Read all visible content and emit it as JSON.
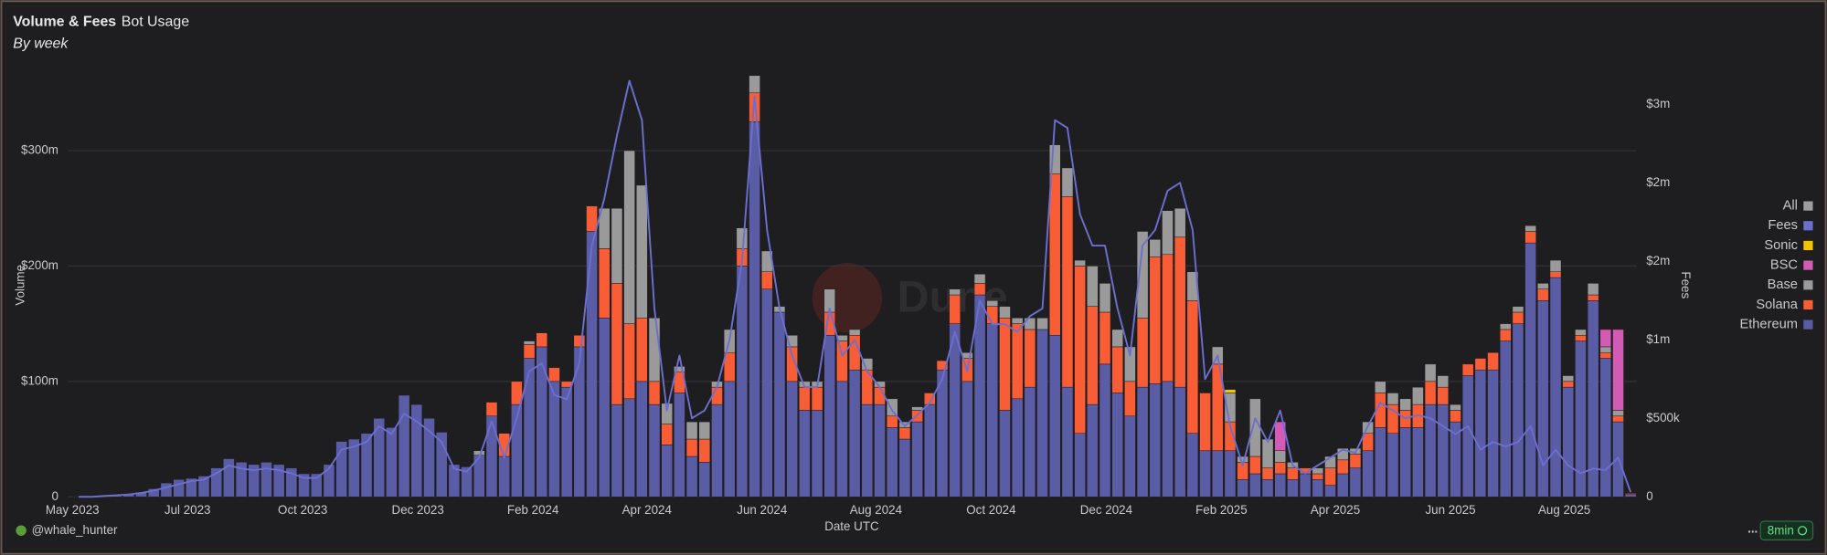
{
  "header": {
    "title": "Volume & Fees",
    "tab": "Bot Usage",
    "subtitle": "By week"
  },
  "footer": {
    "author": "@whale_hunter",
    "refresh": "8min",
    "menu": "..."
  },
  "watermark": "Dune",
  "chart_data": {
    "type": "bar",
    "stacked": true,
    "grid": true,
    "legend_position": "right",
    "xlabel": "Date UTC",
    "ylabel": "Volume",
    "y2label": "Fees",
    "categories": [
      null,
      null,
      null,
      null,
      null,
      null,
      null,
      null,
      null,
      null,
      null,
      null,
      null,
      null,
      null,
      null,
      null,
      null,
      null,
      null,
      null,
      null,
      null,
      null,
      null,
      null,
      null,
      null,
      null,
      null,
      null,
      null,
      null,
      null,
      null,
      null,
      null,
      null,
      null,
      null,
      null,
      null,
      null,
      null,
      null,
      null,
      null,
      null,
      null,
      null,
      null,
      null,
      null,
      null,
      null,
      null,
      null,
      null,
      null,
      null,
      null,
      null,
      null,
      null,
      null,
      null,
      null,
      null,
      null,
      null,
      null,
      null,
      null,
      null,
      null,
      null,
      null,
      null,
      null,
      null,
      null,
      null,
      null,
      null,
      null,
      null,
      null,
      null,
      null,
      null,
      null,
      null,
      null,
      null,
      null,
      null,
      null,
      null,
      null,
      null,
      null,
      null,
      null,
      null,
      null,
      null,
      null,
      null,
      null,
      null,
      null,
      null,
      null,
      null,
      null,
      null,
      null,
      null,
      null,
      null,
      null,
      null,
      null,
      null,
      null
    ],
    "xticks": [
      {
        "value": 0,
        "label": "May 2023"
      },
      {
        "value": 9.2,
        "label": "Jul 2023"
      },
      {
        "value": 18.4,
        "label": "Oct 2023"
      },
      {
        "value": 27.6,
        "label": "Dec 2023"
      },
      {
        "value": 36.8,
        "label": "Feb 2024"
      },
      {
        "value": 45.9,
        "label": "Apr 2024"
      },
      {
        "value": 55.1,
        "label": "Jun 2024"
      },
      {
        "value": 64.2,
        "label": "Aug 2024"
      },
      {
        "value": 73.4,
        "label": "Oct 2024"
      },
      {
        "value": 82.6,
        "label": "Dec 2024"
      },
      {
        "value": 91.8,
        "label": "Feb 2025"
      },
      {
        "value": 100.9,
        "label": "Apr 2025"
      },
      {
        "value": 110.1,
        "label": "Jun 2025"
      },
      {
        "value": 119.2,
        "label": "Aug 2025"
      }
    ],
    "ylim": [
      0,
      370
    ],
    "yticks": [
      0,
      {
        "value": 100,
        "label": "$100m"
      },
      {
        "value": 200,
        "label": "$200m"
      },
      {
        "value": 300,
        "label": "$300m"
      }
    ],
    "y2lim": [
      0,
      2720000
    ],
    "y2ticks": [
      0,
      {
        "value": 500000,
        "label": "$500k"
      },
      {
        "value": 1000000,
        "label": "$1m"
      },
      {
        "value": 1500000,
        "label": "$2m"
      },
      {
        "value": 2000000,
        "label": "$2m"
      },
      {
        "value": 2500000,
        "label": "$3m"
      }
    ],
    "legend_all": {
      "name": "All",
      "color": "#9e9e9e"
    },
    "series": [
      {
        "name": "Ethereum",
        "color": "#5b5ca6",
        "values": [
          0.5,
          0.5,
          1,
          1,
          2,
          4,
          7,
          12,
          15,
          16,
          18,
          25,
          33,
          30,
          28,
          30,
          28,
          25,
          20,
          20,
          28,
          48,
          50,
          55,
          68,
          60,
          88,
          80,
          68,
          56,
          28,
          26,
          36,
          70,
          35,
          80,
          120,
          130,
          100,
          95,
          130,
          230,
          155,
          80,
          85,
          100,
          80,
          45,
          90,
          35,
          30,
          80,
          100,
          200,
          325,
          180,
          160,
          100,
          75,
          75,
          140,
          100,
          110,
          80,
          80,
          60,
          50,
          65,
          80,
          110,
          150,
          100,
          175,
          150,
          75,
          85,
          95,
          145,
          140,
          95,
          55,
          80,
          115,
          90,
          70,
          95,
          98,
          100,
          95,
          55,
          40,
          40,
          40,
          15,
          20,
          15,
          20,
          15,
          20,
          15,
          10,
          20,
          25,
          40,
          60,
          55,
          60,
          60,
          80,
          80,
          65,
          105,
          110,
          110,
          135,
          150,
          220,
          170,
          190,
          95,
          135,
          170,
          120,
          65,
          2
        ]
      },
      {
        "name": "Solana",
        "color": "#f95d35",
        "values": [
          0,
          0,
          0,
          0,
          0,
          0,
          0,
          0,
          0,
          0,
          0,
          0,
          0,
          0,
          0,
          0,
          0,
          0,
          0,
          0,
          0,
          0,
          0,
          0,
          0,
          0,
          0,
          0,
          0,
          0,
          0,
          0,
          0,
          12,
          20,
          20,
          12,
          12,
          12,
          5,
          10,
          22,
          60,
          105,
          65,
          55,
          20,
          18,
          18,
          15,
          20,
          15,
          25,
          15,
          25,
          15,
          0,
          30,
          20,
          20,
          20,
          35,
          30,
          30,
          15,
          10,
          10,
          10,
          10,
          8,
          25,
          20,
          10,
          15,
          80,
          65,
          50,
          0,
          140,
          165,
          145,
          85,
          45,
          40,
          30,
          60,
          110,
          110,
          130,
          115,
          50,
          75,
          25,
          15,
          15,
          10,
          10,
          10,
          5,
          5,
          15,
          12,
          12,
          15,
          30,
          25,
          15,
          20,
          20,
          15,
          10,
          10,
          10,
          15,
          10,
          10,
          10,
          10,
          5,
          5,
          5,
          5,
          5,
          5,
          1
        ]
      },
      {
        "name": "Base",
        "color": "#9a9a9a",
        "values": [
          0,
          0,
          0,
          0,
          0,
          0,
          0,
          0,
          0,
          0,
          0,
          0,
          0,
          0,
          0,
          0,
          0,
          0,
          0,
          0,
          0,
          0,
          0,
          0,
          0,
          0,
          0,
          0,
          0,
          0,
          0,
          0,
          4,
          0,
          0,
          0,
          3,
          0,
          0,
          0,
          0,
          0,
          35,
          65,
          150,
          115,
          55,
          18,
          5,
          15,
          15,
          5,
          20,
          18,
          15,
          18,
          5,
          10,
          5,
          5,
          20,
          5,
          5,
          10,
          5,
          15,
          5,
          3,
          0,
          0,
          5,
          5,
          8,
          5,
          10,
          5,
          10,
          10,
          25,
          25,
          5,
          35,
          25,
          15,
          30,
          75,
          15,
          38,
          25,
          25,
          0,
          15,
          25,
          5,
          50,
          25,
          10,
          5,
          0,
          5,
          10,
          10,
          5,
          10,
          10,
          10,
          10,
          15,
          15,
          10,
          5,
          0,
          0,
          0,
          5,
          5,
          5,
          5,
          10,
          5,
          5,
          10,
          5,
          5,
          0
        ]
      },
      {
        "name": "BSC",
        "color": "#d45bb5",
        "values": [
          0,
          0,
          0,
          0,
          0,
          0,
          0,
          0,
          0,
          0,
          0,
          0,
          0,
          0,
          0,
          0,
          0,
          0,
          0,
          0,
          0,
          0,
          0,
          0,
          0,
          0,
          0,
          0,
          0,
          0,
          0,
          0,
          0,
          0,
          0,
          0,
          0,
          0,
          0,
          0,
          0,
          0,
          0,
          0,
          0,
          0,
          0,
          0,
          0,
          0,
          0,
          0,
          0,
          0,
          0,
          0,
          0,
          0,
          0,
          0,
          0,
          0,
          0,
          0,
          0,
          0,
          0,
          0,
          0,
          0,
          0,
          0,
          0,
          0,
          0,
          0,
          0,
          0,
          0,
          0,
          0,
          0,
          0,
          0,
          0,
          0,
          0,
          0,
          0,
          0,
          0,
          0,
          0,
          0,
          0,
          0,
          25,
          0,
          0,
          0,
          0,
          0,
          0,
          0,
          0,
          0,
          0,
          0,
          0,
          0,
          0,
          0,
          0,
          0,
          0,
          0,
          0,
          0,
          0,
          0,
          0,
          0,
          15,
          70,
          0
        ]
      },
      {
        "name": "Sonic",
        "color": "#f5c400",
        "values": [
          0,
          0,
          0,
          0,
          0,
          0,
          0,
          0,
          0,
          0,
          0,
          0,
          0,
          0,
          0,
          0,
          0,
          0,
          0,
          0,
          0,
          0,
          0,
          0,
          0,
          0,
          0,
          0,
          0,
          0,
          0,
          0,
          0,
          0,
          0,
          0,
          0,
          0,
          0,
          0,
          0,
          0,
          0,
          0,
          0,
          0,
          0,
          0,
          0,
          0,
          0,
          0,
          0,
          0,
          0,
          0,
          0,
          0,
          0,
          0,
          0,
          0,
          0,
          0,
          0,
          0,
          0,
          0,
          0,
          0,
          0,
          0,
          0,
          0,
          0,
          0,
          0,
          0,
          0,
          0,
          0,
          0,
          0,
          0,
          0,
          0,
          0,
          0,
          0,
          0,
          0,
          0,
          3,
          0,
          0,
          0,
          0,
          0,
          0,
          0,
          0,
          0,
          0,
          0,
          0,
          0,
          0,
          0,
          0,
          0,
          0,
          0,
          0,
          0,
          0,
          0,
          0,
          0,
          0,
          0,
          0,
          0,
          0,
          0,
          0
        ]
      },
      {
        "name": "Fees",
        "color": "#6b6fd0",
        "type": "line",
        "axis": "y2",
        "values": [
          0,
          0,
          5000,
          10000,
          15000,
          25000,
          40000,
          60000,
          80000,
          100000,
          110000,
          150000,
          200000,
          180000,
          170000,
          180000,
          170000,
          150000,
          120000,
          120000,
          180000,
          300000,
          320000,
          350000,
          450000,
          400000,
          530000,
          480000,
          420000,
          350000,
          180000,
          160000,
          250000,
          480000,
          250000,
          500000,
          800000,
          850000,
          650000,
          620000,
          850000,
          1600000,
          1900000,
          2300000,
          2650000,
          2400000,
          1200000,
          550000,
          900000,
          500000,
          550000,
          700000,
          1000000,
          1500000,
          2550000,
          1700000,
          1200000,
          900000,
          700000,
          700000,
          1200000,
          900000,
          1000000,
          800000,
          700000,
          550000,
          450000,
          520000,
          600000,
          750000,
          1050000,
          800000,
          1250000,
          1100000,
          1100000,
          1050000,
          1150000,
          1200000,
          2400000,
          2350000,
          1800000,
          1600000,
          1600000,
          1200000,
          900000,
          1600000,
          1700000,
          1950000,
          2000000,
          1700000,
          750000,
          900000,
          450000,
          200000,
          500000,
          350000,
          550000,
          200000,
          150000,
          200000,
          250000,
          300000,
          280000,
          450000,
          600000,
          550000,
          500000,
          520000,
          500000,
          450000,
          400000,
          450000,
          300000,
          350000,
          320000,
          350000,
          450000,
          200000,
          300000,
          200000,
          150000,
          180000,
          170000,
          250000,
          30000
        ]
      }
    ]
  }
}
